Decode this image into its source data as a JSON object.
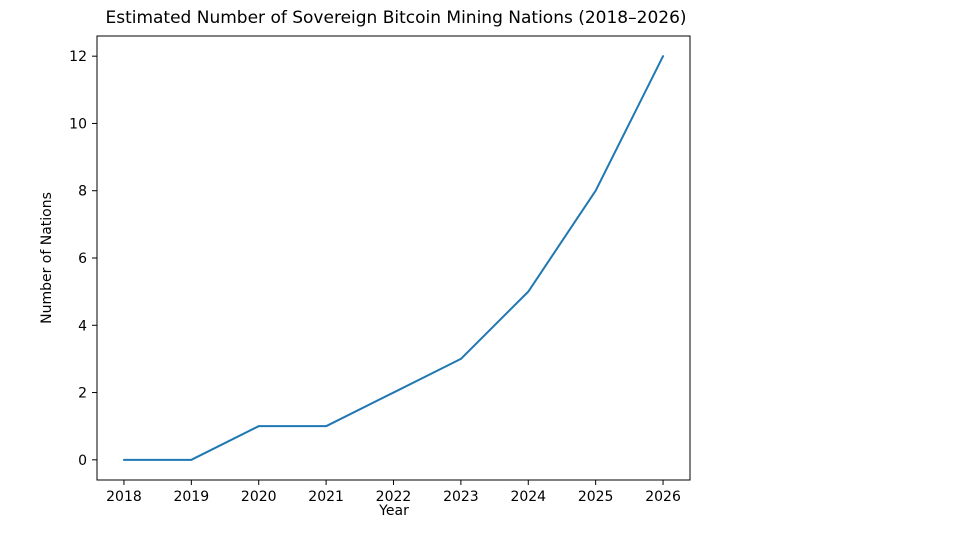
{
  "page": {
    "background": "#ffffff"
  },
  "chart_data": {
    "type": "line",
    "title": "Estimated Number of Sovereign Bitcoin Mining Nations (2018–2026)",
    "xlabel": "Year",
    "ylabel": "Number of Nations",
    "x": [
      2018,
      2019,
      2020,
      2021,
      2022,
      2023,
      2024,
      2025,
      2026
    ],
    "values": [
      0,
      0,
      1,
      1,
      2,
      3,
      5,
      8,
      12
    ],
    "xticks": [
      2018,
      2019,
      2020,
      2021,
      2022,
      2023,
      2024,
      2025,
      2026
    ],
    "yticks": [
      0,
      2,
      4,
      6,
      8,
      10,
      12
    ],
    "xlim": [
      2017.6,
      2026.4
    ],
    "ylim": [
      -0.6,
      12.6
    ],
    "line_color": "#1f77b4",
    "axis_color": "#000000",
    "grid": false,
    "legend": null
  }
}
